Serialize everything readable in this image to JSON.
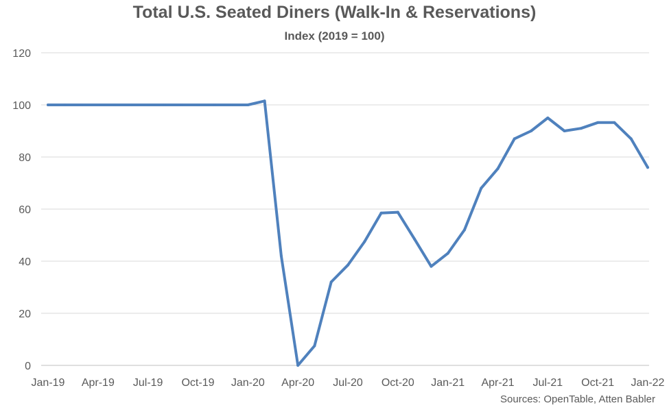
{
  "chart_data": {
    "type": "line",
    "title": "Total U.S. Seated Diners (Walk-In & Reservations)",
    "subtitle": "Index (2019 = 100)",
    "source": "Sources: OpenTable, Atten Babler",
    "xlabel": "",
    "ylabel": "",
    "ylim": [
      0,
      120
    ],
    "yticks": [
      0,
      20,
      40,
      60,
      80,
      100,
      120
    ],
    "xtick_labels": [
      "Jan-19",
      "Apr-19",
      "Jul-19",
      "Oct-19",
      "Jan-20",
      "Apr-20",
      "Jul-20",
      "Oct-20",
      "Jan-21",
      "Apr-21",
      "Jul-21",
      "Oct-21",
      "Jan-22"
    ],
    "grid": true,
    "legend": "none",
    "colors": {
      "line": "#4f81bd",
      "grid": "#d9d9d9",
      "text": "#595959"
    },
    "x": [
      "Jan-19",
      "Feb-19",
      "Mar-19",
      "Apr-19",
      "May-19",
      "Jun-19",
      "Jul-19",
      "Aug-19",
      "Sep-19",
      "Oct-19",
      "Nov-19",
      "Dec-19",
      "Jan-20",
      "Feb-20",
      "Mar-20",
      "Apr-20",
      "May-20",
      "Jun-20",
      "Jul-20",
      "Aug-20",
      "Sep-20",
      "Oct-20",
      "Nov-20",
      "Dec-20",
      "Jan-21",
      "Feb-21",
      "Mar-21",
      "Apr-21",
      "May-21",
      "Jun-21",
      "Jul-21",
      "Aug-21",
      "Sep-21",
      "Oct-21",
      "Nov-21",
      "Dec-21",
      "Jan-22"
    ],
    "series": [
      {
        "values": [
          100,
          100,
          100,
          100,
          100,
          100,
          100,
          100,
          100,
          100,
          100,
          100,
          100,
          101.5,
          42,
          0,
          7.5,
          32,
          38.5,
          47.5,
          58.5,
          58.8,
          48.5,
          38,
          43,
          52,
          68,
          75.5,
          87,
          90,
          95,
          90,
          91,
          93.2,
          93.2,
          87,
          76
        ]
      }
    ]
  }
}
